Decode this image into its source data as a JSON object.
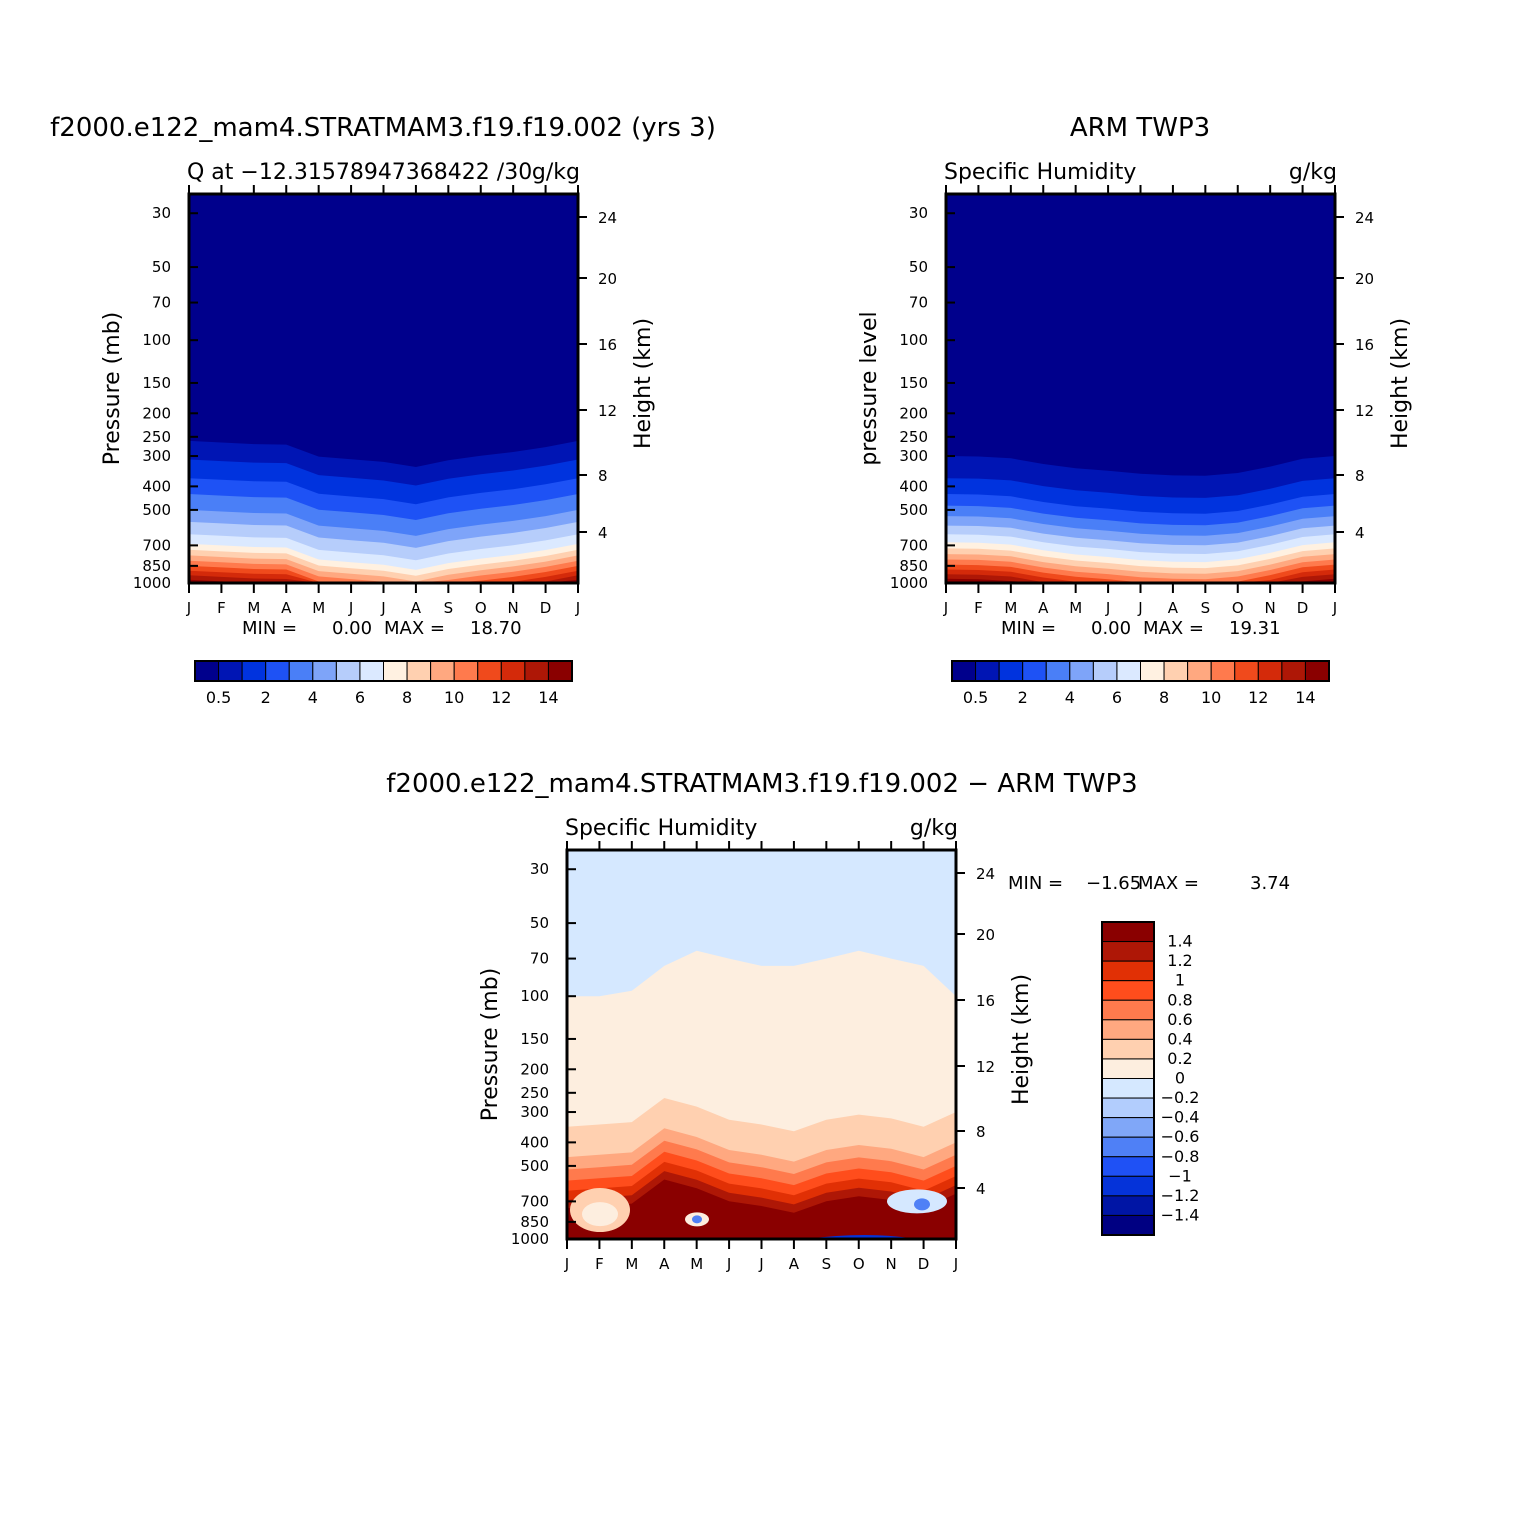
{
  "chart_data": [
    {
      "type": "heatmap",
      "id": "model",
      "title": "f2000.e122_mam4.STRATMAM3.f19.f19.002 (yrs 3)",
      "subtitle_left": "Q at −12.31578947368422 /30",
      "units": "g/kg",
      "ylabel": "Pressure (mb)",
      "ylabel_right": "Height (km)",
      "stats": {
        "min_label": "MIN =",
        "min": "0.00",
        "max_label": "MAX =",
        "max": "18.70"
      },
      "x_ticks": [
        "J",
        "F",
        "M",
        "A",
        "M",
        "J",
        "J",
        "A",
        "S",
        "O",
        "N",
        "D",
        "J"
      ],
      "y_ticks": [
        "30",
        "50",
        "70",
        "100",
        "150",
        "200",
        "250",
        "300",
        "400",
        "500",
        "700",
        "850",
        "1000"
      ],
      "y_ticks_right": [
        "24",
        "20",
        "16",
        "12",
        "8",
        "4"
      ],
      "boundaries_mb": [
        260,
        310,
        370,
        430,
        500,
        560,
        630,
        690,
        730,
        770,
        810,
        850,
        890,
        930,
        970
      ],
      "colorbar_labels": [
        "0.5",
        "2",
        "4",
        "6",
        "8",
        "10",
        "12",
        "14"
      ]
    },
    {
      "type": "heatmap",
      "id": "obs",
      "title": "ARM TWP3",
      "subtitle_left": "Specific Humidity",
      "units": "g/kg",
      "ylabel": "pressure level",
      "ylabel_right": "Height (km)",
      "stats": {
        "min_label": "MIN =",
        "min": "0.00",
        "max_label": "MAX =",
        "max": "19.31"
      },
      "x_ticks": [
        "J",
        "F",
        "M",
        "A",
        "M",
        "J",
        "J",
        "A",
        "S",
        "O",
        "N",
        "D",
        "J"
      ],
      "y_ticks": [
        "30",
        "50",
        "70",
        "100",
        "150",
        "200",
        "250",
        "300",
        "400",
        "500",
        "700",
        "850",
        "1000"
      ],
      "y_ticks_right": [
        "24",
        "20",
        "16",
        "12",
        "8",
        "4"
      ],
      "boundaries_mb": [
        300,
        370,
        430,
        480,
        530,
        580,
        630,
        680,
        720,
        760,
        800,
        840,
        880,
        920,
        960
      ],
      "colorbar_labels": [
        "0.5",
        "2",
        "4",
        "6",
        "8",
        "10",
        "12",
        "14"
      ]
    },
    {
      "type": "heatmap",
      "id": "diff",
      "title": "f2000.e122_mam4.STRATMAM3.f19.f19.002 − ARM TWP3",
      "subtitle_left": "Specific Humidity",
      "units": "g/kg",
      "ylabel": "Pressure (mb)",
      "ylabel_right": "Height (km)",
      "stats": {
        "min_label": "MIN =",
        "min": "−1.65",
        "max_label": "MAX =",
        "max": "3.74"
      },
      "x_ticks": [
        "J",
        "F",
        "M",
        "A",
        "M",
        "J",
        "J",
        "A",
        "S",
        "O",
        "N",
        "D",
        "J"
      ],
      "y_ticks": [
        "30",
        "50",
        "70",
        "100",
        "150",
        "200",
        "250",
        "300",
        "400",
        "500",
        "700",
        "850",
        "1000"
      ],
      "y_ticks_right": [
        "24",
        "20",
        "16",
        "12",
        "8",
        "4"
      ],
      "boundary_zero_mb": 100,
      "boundaries_pos_mb": [
        300,
        400,
        450,
        500,
        550,
        600,
        650
      ],
      "colorbar_labels": [
        "1.4",
        "1.2",
        "1",
        "0.8",
        "0.6",
        "0.4",
        "0.2",
        "0",
        "−0.2",
        "−0.4",
        "−0.6",
        "−0.8",
        "−1",
        "−1.2",
        "−1.4"
      ]
    }
  ],
  "palettes": {
    "humidity": [
      "#00008c",
      "#0015b4",
      "#0033de",
      "#1e52f5",
      "#4a7ff7",
      "#7ea4f9",
      "#b6cdfb",
      "#dbe9ff",
      "#fff1e1",
      "#ffd0b0",
      "#ffa880",
      "#ff7a4d",
      "#f04a1c",
      "#d42a0a",
      "#ae1706",
      "#8a0000"
    ],
    "difference": [
      "#8a0000",
      "#ae1706",
      "#e13005",
      "#ff4d1c",
      "#ff7a4d",
      "#ffa880",
      "#ffd0b0",
      "#fdeedf",
      "#d5e8ff",
      "#b2cdfd",
      "#80a7f8",
      "#4f80f6",
      "#1f51f5",
      "#0533d9",
      "#0015a5",
      "#000082"
    ]
  }
}
